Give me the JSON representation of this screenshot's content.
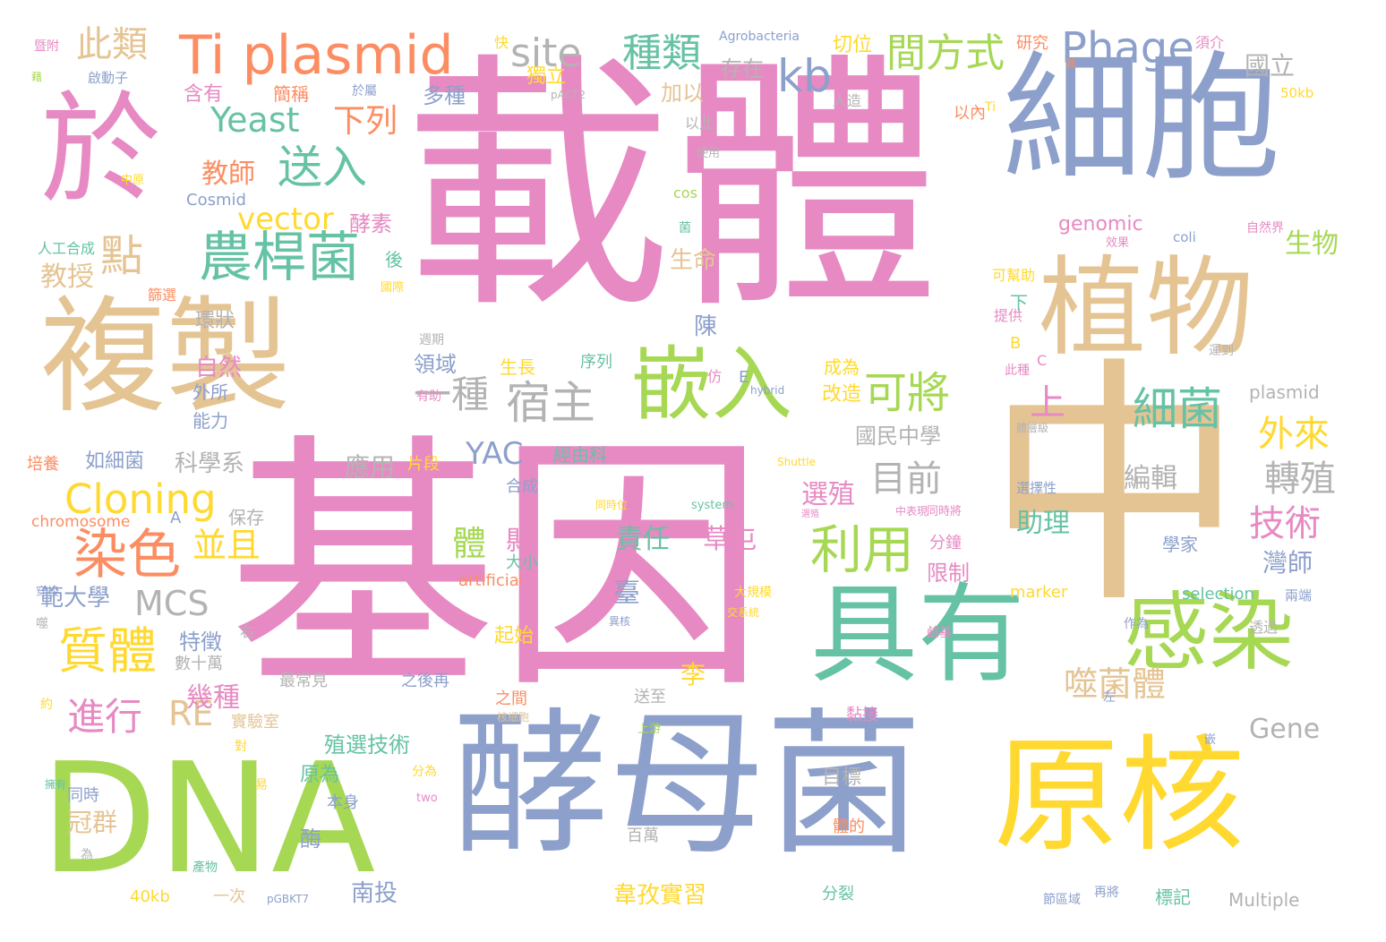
{
  "palette": {
    "pink": "#e78ac3",
    "blue": "#8da0cb",
    "tan": "#e5c494",
    "green": "#a6d854",
    "yellow": "#ffd92f",
    "teal": "#66c2a5",
    "orange": "#fc8d62",
    "gray": "#b3b3b3"
  },
  "words": [
    {
      "text": "載體",
      "color": "pink",
      "weight": 1.0
    },
    {
      "text": "基因",
      "color": "pink",
      "weight": 0.98
    },
    {
      "text": "中",
      "color": "tan",
      "weight": 0.95
    },
    {
      "text": "酵母菌",
      "color": "blue",
      "weight": 0.7
    },
    {
      "text": "DNA",
      "color": "green",
      "weight": 0.66
    },
    {
      "text": "細胞",
      "color": "blue",
      "weight": 0.52
    },
    {
      "text": "於",
      "color": "pink",
      "weight": 0.56
    },
    {
      "text": "複製",
      "color": "tan",
      "weight": 0.5
    },
    {
      "text": "原核",
      "color": "yellow",
      "weight": 0.45
    },
    {
      "text": "具有",
      "color": "teal",
      "weight": 0.45
    },
    {
      "text": "植物",
      "color": "tan",
      "weight": 0.4
    },
    {
      "text": "感染",
      "color": "green",
      "weight": 0.32
    },
    {
      "text": "嵌入",
      "color": "green",
      "weight": 0.27
    },
    {
      "text": "Ti plasmid",
      "color": "orange",
      "weight": 0.22
    },
    {
      "text": "農桿菌",
      "color": "teal",
      "weight": 0.19
    },
    {
      "text": "染色",
      "color": "orange",
      "weight": 0.2
    },
    {
      "text": "質體",
      "color": "yellow",
      "weight": 0.17
    },
    {
      "text": "Phage",
      "color": "blue",
      "weight": 0.15
    },
    {
      "text": "Cloning",
      "color": "yellow",
      "weight": 0.14
    },
    {
      "text": "利用",
      "color": "green",
      "weight": 0.16
    },
    {
      "text": "細菌",
      "color": "teal",
      "weight": 0.15
    },
    {
      "text": "宿主",
      "color": "gray",
      "weight": 0.15
    },
    {
      "text": "kb",
      "color": "blue",
      "weight": 0.15
    },
    {
      "text": "送入",
      "color": "teal",
      "weight": 0.15
    },
    {
      "text": "可將",
      "color": "green",
      "weight": 0.14
    },
    {
      "text": "site",
      "color": "gray",
      "weight": 0.13
    },
    {
      "text": "Yeast",
      "color": "teal",
      "weight": 0.13
    },
    {
      "text": "間方式",
      "color": "green",
      "weight": 0.12
    },
    {
      "text": "此類",
      "color": "tan",
      "weight": 0.12
    },
    {
      "text": "種類",
      "color": "teal",
      "weight": 0.12
    },
    {
      "text": "下列",
      "color": "orange",
      "weight": 0.11
    },
    {
      "text": "vector",
      "color": "yellow",
      "weight": 0.11
    },
    {
      "text": "點",
      "color": "tan",
      "weight": 0.12
    },
    {
      "text": "一種",
      "color": "gray",
      "weight": 0.12
    },
    {
      "text": "YAC",
      "color": "blue",
      "weight": 0.11
    },
    {
      "text": "MCS",
      "color": "gray",
      "weight": 0.11
    },
    {
      "text": "並且",
      "color": "yellow",
      "weight": 0.11
    },
    {
      "text": "進行",
      "color": "pink",
      "weight": 0.11
    },
    {
      "text": "RE",
      "color": "tan",
      "weight": 0.11
    },
    {
      "text": "目前",
      "color": "gray",
      "weight": 0.11
    },
    {
      "text": "外來",
      "color": "yellow",
      "weight": 0.1
    },
    {
      "text": "轉殖",
      "color": "gray",
      "weight": 0.1
    },
    {
      "text": "技術",
      "color": "pink",
      "weight": 0.1
    },
    {
      "text": "噬菌體",
      "color": "tan",
      "weight": 0.1
    },
    {
      "text": "Gene",
      "color": "gray",
      "weight": 0.09
    },
    {
      "text": "體",
      "color": "green",
      "weight": 0.1
    },
    {
      "text": "國立",
      "color": "gray",
      "weight": 0.08
    },
    {
      "text": "生物",
      "color": "green",
      "weight": 0.08
    },
    {
      "text": "教師",
      "color": "orange",
      "weight": 0.08
    },
    {
      "text": "教授",
      "color": "tan",
      "weight": 0.08
    },
    {
      "text": "範大學",
      "color": "blue",
      "weight": 0.07
    },
    {
      "text": "科學系",
      "color": "gray",
      "weight": 0.07
    },
    {
      "text": "國民中學",
      "color": "gray",
      "weight": 0.06
    },
    {
      "text": "殖選技術",
      "color": "teal",
      "weight": 0.06
    },
    {
      "text": "韋孜實習",
      "color": "yellow",
      "weight": 0.06
    },
    {
      "text": "南投",
      "color": "blue",
      "weight": 0.06
    },
    {
      "text": "應用",
      "color": "gray",
      "weight": 0.06
    },
    {
      "text": "領域",
      "color": "blue",
      "weight": 0.06
    },
    {
      "text": "縣",
      "color": "pink",
      "weight": 0.06
    },
    {
      "text": "責任",
      "color": "teal",
      "weight": 0.06
    },
    {
      "text": "草屯",
      "color": "pink",
      "weight": 0.06
    },
    {
      "text": "臺",
      "color": "blue",
      "weight": 0.06
    },
    {
      "text": "李",
      "color": "yellow",
      "weight": 0.06
    },
    {
      "text": "選殖",
      "color": "pink",
      "weight": 0.06
    },
    {
      "text": "上",
      "color": "pink",
      "weight": 0.06
    },
    {
      "text": "助理",
      "color": "teal",
      "weight": 0.06
    },
    {
      "text": "編輯",
      "color": "gray",
      "weight": 0.06
    },
    {
      "text": "灣師",
      "color": "blue",
      "weight": 0.06
    },
    {
      "text": "幾種",
      "color": "pink",
      "weight": 0.06
    },
    {
      "text": "特徵",
      "color": "blue",
      "weight": 0.05
    },
    {
      "text": "自然",
      "color": "pink",
      "weight": 0.05
    },
    {
      "text": "生命",
      "color": "tan",
      "weight": 0.05
    },
    {
      "text": "陳",
      "color": "blue",
      "weight": 0.05
    },
    {
      "text": "冠群",
      "color": "tan",
      "weight": 0.05
    },
    {
      "text": "酶",
      "color": "blue",
      "weight": 0.05
    },
    {
      "text": "加以",
      "color": "tan",
      "weight": 0.05
    },
    {
      "text": "存在",
      "color": "gray",
      "weight": 0.05
    },
    {
      "text": "切位",
      "color": "yellow",
      "weight": 0.05
    },
    {
      "text": "多種",
      "color": "blue",
      "weight": 0.05
    },
    {
      "text": "獨立",
      "color": "yellow",
      "weight": 0.05
    },
    {
      "text": "酵素",
      "color": "pink",
      "weight": 0.05
    },
    {
      "text": "genomic",
      "color": "pink",
      "weight": 0.05
    },
    {
      "text": "plasmid",
      "color": "gray",
      "weight": 0.04
    },
    {
      "text": "如細菌",
      "color": "blue",
      "weight": 0.04
    },
    {
      "text": "外所",
      "color": "blue",
      "weight": 0.04
    },
    {
      "text": "能力",
      "color": "blue",
      "weight": 0.04
    },
    {
      "text": "環狀",
      "color": "gray",
      "weight": 0.04
    },
    {
      "text": "實驗室",
      "color": "tan",
      "weight": 0.04
    },
    {
      "text": "保存",
      "color": "gray",
      "weight": 0.04
    },
    {
      "text": "限制",
      "color": "pink",
      "weight": 0.04
    },
    {
      "text": "分鐘",
      "color": "pink",
      "weight": 0.04
    },
    {
      "text": "學家",
      "color": "blue",
      "weight": 0.04
    },
    {
      "text": "原為",
      "color": "teal",
      "weight": 0.04
    },
    {
      "text": "含有",
      "color": "pink",
      "weight": 0.04
    },
    {
      "text": "簡稱",
      "color": "orange",
      "weight": 0.04
    },
    {
      "text": "改造",
      "color": "yellow",
      "weight": 0.04
    },
    {
      "text": "片段",
      "color": "yellow",
      "weight": 0.04
    },
    {
      "text": "起始",
      "color": "yellow",
      "weight": 0.04
    },
    {
      "text": "大小",
      "color": "teal",
      "weight": 0.04
    },
    {
      "text": "合成",
      "color": "blue",
      "weight": 0.04
    },
    {
      "text": "成為",
      "color": "yellow",
      "weight": 0.04
    },
    {
      "text": "序列",
      "color": "teal",
      "weight": 0.04
    },
    {
      "text": "生長",
      "color": "yellow",
      "weight": 0.04
    },
    {
      "text": "後",
      "color": "teal",
      "weight": 0.04
    },
    {
      "text": "下",
      "color": "teal",
      "weight": 0.04
    },
    {
      "text": "研究",
      "color": "orange",
      "weight": 0.04
    },
    {
      "text": "標記",
      "color": "teal",
      "weight": 0.04
    },
    {
      "text": "目標",
      "color": "gray",
      "weight": 0.04
    },
    {
      "text": "分裂",
      "color": "teal",
      "weight": 0.04
    },
    {
      "text": "培養",
      "color": "orange",
      "weight": 0.04
    },
    {
      "text": "人工合成",
      "color": "teal",
      "weight": 0.035
    },
    {
      "text": "Cosmid",
      "color": "blue",
      "weight": 0.035
    },
    {
      "text": "chromosome",
      "color": "orange",
      "weight": 0.035
    },
    {
      "text": "artificial",
      "color": "orange",
      "weight": 0.035
    },
    {
      "text": "selection",
      "color": "teal",
      "weight": 0.035
    },
    {
      "text": "Multiple",
      "color": "gray",
      "weight": 0.035
    },
    {
      "text": "marker",
      "color": "yellow",
      "weight": 0.03
    },
    {
      "text": "Agrobacteria",
      "color": "blue",
      "weight": 0.03
    },
    {
      "text": "50kb",
      "color": "yellow",
      "weight": 0.03
    },
    {
      "text": "40kb",
      "color": "yellow",
      "weight": 0.03
    },
    {
      "text": "數十萬",
      "color": "gray",
      "weight": 0.03
    },
    {
      "text": "最常見",
      "color": "gray",
      "weight": 0.03
    },
    {
      "text": "之後再",
      "color": "blue",
      "weight": 0.03
    },
    {
      "text": "送至",
      "color": "gray",
      "weight": 0.03
    },
    {
      "text": "之間",
      "color": "orange",
      "weight": 0.03
    },
    {
      "text": "黏接",
      "color": "pink",
      "weight": 0.03
    },
    {
      "text": "經由科",
      "color": "teal",
      "weight": 0.03
    },
    {
      "text": "大規模",
      "color": "yellow",
      "weight": 0.03
    },
    {
      "text": "同時",
      "color": "blue",
      "weight": 0.03
    },
    {
      "text": "本身",
      "color": "blue",
      "weight": 0.03
    },
    {
      "text": "一次",
      "color": "tan",
      "weight": 0.03
    },
    {
      "text": "百萬",
      "color": "gray",
      "weight": 0.03
    },
    {
      "text": "體的",
      "color": "orange",
      "weight": 0.03
    },
    {
      "text": "透過",
      "color": "gray",
      "weight": 0.03
    },
    {
      "text": "作為",
      "color": "blue",
      "weight": 0.03
    },
    {
      "text": "兩端",
      "color": "blue",
      "weight": 0.03
    },
    {
      "text": "可幫助",
      "color": "yellow",
      "weight": 0.03
    },
    {
      "text": "提供",
      "color": "pink",
      "weight": 0.03
    },
    {
      "text": "以此",
      "color": "gray",
      "weight": 0.03
    },
    {
      "text": "以內",
      "color": "orange",
      "weight": 0.03
    },
    {
      "text": "人造",
      "color": "gray",
      "weight": 0.03
    },
    {
      "text": "須介",
      "color": "pink",
      "weight": 0.03
    },
    {
      "text": "篩選",
      "color": "orange",
      "weight": 0.03
    },
    {
      "text": "選擇性",
      "color": "blue",
      "weight": 0.03
    },
    {
      "text": "啟動子",
      "color": "blue",
      "weight": 0.03
    },
    {
      "text": "週期",
      "color": "gray",
      "weight": 0.025
    },
    {
      "text": "有助",
      "color": "pink",
      "weight": 0.025
    },
    {
      "text": "於屬",
      "color": "blue",
      "weight": 0.025
    },
    {
      "text": "使用",
      "color": "gray",
      "weight": 0.025
    },
    {
      "text": "中原",
      "color": "yellow",
      "weight": 0.025
    },
    {
      "text": "國際",
      "color": "yellow",
      "weight": 0.025
    },
    {
      "text": "快",
      "color": "yellow",
      "weight": 0.025
    },
    {
      "text": "佩",
      "color": "orange",
      "weight": 0.025
    },
    {
      "text": "仿",
      "color": "pink",
      "weight": 0.025
    },
    {
      "text": "對",
      "color": "yellow",
      "weight": 0.025
    },
    {
      "text": "易",
      "color": "yellow",
      "weight": 0.025
    },
    {
      "text": "約",
      "color": "yellow",
      "weight": 0.025
    },
    {
      "text": "為",
      "color": "gray",
      "weight": 0.025
    },
    {
      "text": "右",
      "color": "gray",
      "weight": 0.025
    },
    {
      "text": "左",
      "color": "blue",
      "weight": 0.025
    },
    {
      "text": "嵌",
      "color": "blue",
      "weight": 0.025
    },
    {
      "text": "菌",
      "color": "teal",
      "weight": 0.025
    },
    {
      "text": "運到",
      "color": "gray",
      "weight": 0.025
    },
    {
      "text": "自然界",
      "color": "pink",
      "weight": 0.025
    },
    {
      "text": "效果",
      "color": "pink",
      "weight": 0.025
    },
    {
      "text": "此種",
      "color": "pink",
      "weight": 0.025
    },
    {
      "text": "同時位",
      "color": "yellow",
      "weight": 0.025
    },
    {
      "text": "同時將",
      "color": "pink",
      "weight": 0.025
    },
    {
      "text": "中表現",
      "color": "pink",
      "weight": 0.025
    },
    {
      "text": "體層級",
      "color": "gray",
      "weight": 0.025
    },
    {
      "text": "核細胞",
      "color": "tan",
      "weight": 0.025
    },
    {
      "text": "異核",
      "color": "blue",
      "weight": 0.025
    },
    {
      "text": "交系統",
      "color": "yellow",
      "weight": 0.025
    },
    {
      "text": "鹼基",
      "color": "pink",
      "weight": 0.025
    },
    {
      "text": "擁有",
      "color": "teal",
      "weight": 0.025
    },
    {
      "text": "分為",
      "color": "yellow",
      "weight": 0.025
    },
    {
      "text": "產物",
      "color": "teal",
      "weight": 0.025
    },
    {
      "text": "再將",
      "color": "blue",
      "weight": 0.025
    },
    {
      "text": "節區域",
      "color": "blue",
      "weight": 0.025
    },
    {
      "text": "上游",
      "color": "green",
      "weight": 0.025
    },
    {
      "text": "暨附",
      "color": "pink",
      "weight": 0.025
    },
    {
      "text": "穿梭",
      "color": "blue",
      "weight": 0.025
    },
    {
      "text": "噬",
      "color": "gray",
      "weight": 0.025
    },
    {
      "text": "藉",
      "color": "green",
      "weight": 0.025
    },
    {
      "text": "Ti",
      "color": "yellow",
      "weight": 0.025
    },
    {
      "text": "cos",
      "color": "green",
      "weight": 0.025
    },
    {
      "text": "coli",
      "color": "blue",
      "weight": 0.025
    },
    {
      "text": "two",
      "color": "pink",
      "weight": 0.025
    },
    {
      "text": "hybrid",
      "color": "blue",
      "weight": 0.02
    },
    {
      "text": "Shuttle",
      "color": "yellow",
      "weight": 0.02
    },
    {
      "text": "system",
      "color": "teal",
      "weight": 0.02
    },
    {
      "text": "pACT2",
      "color": "gray",
      "weight": 0.02
    },
    {
      "text": "pGBKT7",
      "color": "blue",
      "weight": 0.02
    },
    {
      "text": "A",
      "color": "blue",
      "weight": 0.025
    },
    {
      "text": "B",
      "color": "yellow",
      "weight": 0.025
    },
    {
      "text": "C",
      "color": "pink",
      "weight": 0.025
    },
    {
      "text": "E",
      "color": "blue",
      "weight": 0.025
    },
    {
      "text": "選殖",
      "color": "pink",
      "weight": 0.02
    }
  ]
}
